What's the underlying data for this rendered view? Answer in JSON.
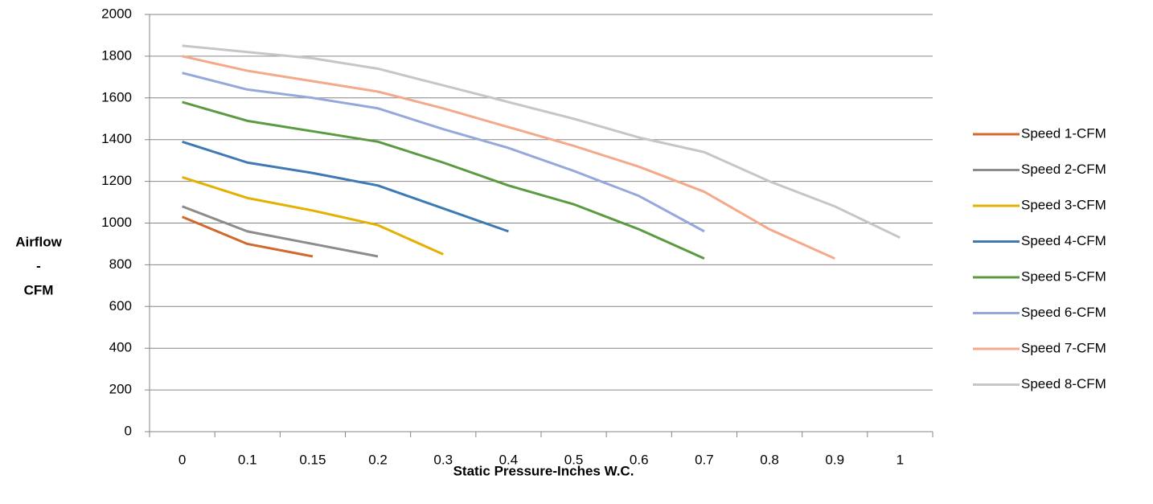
{
  "chart_data": {
    "type": "line",
    "x_label": "Static Pressure-Inches W.C.",
    "y_label": [
      "Airflow",
      "-",
      "CFM"
    ],
    "categories": [
      "0",
      "0.1",
      "0.15",
      "0.2",
      "0.3",
      "0.4",
      "0.5",
      "0.6",
      "0.7",
      "0.8",
      "0.9",
      "1"
    ],
    "ylim": [
      0,
      2000
    ],
    "yticks": [
      0,
      200,
      400,
      600,
      800,
      1000,
      1200,
      1400,
      1600,
      1800,
      2000
    ],
    "grid": true,
    "legend": "right",
    "series": [
      {
        "name": "Speed 1-CFM",
        "color": "#d0692b",
        "values": [
          1030,
          900,
          840,
          null,
          null,
          null,
          null,
          null,
          null,
          null,
          null,
          null
        ]
      },
      {
        "name": "Speed 2-CFM",
        "color": "#8c8c8c",
        "values": [
          1080,
          960,
          900,
          840,
          null,
          null,
          null,
          null,
          null,
          null,
          null,
          null
        ]
      },
      {
        "name": "Speed 3-CFM",
        "color": "#e5b000",
        "values": [
          1220,
          1120,
          1060,
          990,
          850,
          null,
          null,
          null,
          null,
          null,
          null,
          null
        ]
      },
      {
        "name": "Speed 4-CFM",
        "color": "#3d7ab5",
        "values": [
          1390,
          1290,
          1240,
          1180,
          1070,
          960,
          null,
          null,
          null,
          null,
          null,
          null
        ]
      },
      {
        "name": "Speed 5-CFM",
        "color": "#5b9a40",
        "values": [
          1580,
          1490,
          1440,
          1390,
          1290,
          1180,
          1090,
          970,
          830,
          null,
          null,
          null
        ]
      },
      {
        "name": "Speed 6-CFM",
        "color": "#94a8db",
        "values": [
          1720,
          1640,
          1600,
          1550,
          1450,
          1360,
          1250,
          1130,
          960,
          null,
          null,
          null
        ]
      },
      {
        "name": "Speed 7-CFM",
        "color": "#f4a98a",
        "values": [
          1800,
          1730,
          1680,
          1630,
          1550,
          1460,
          1370,
          1270,
          1150,
          970,
          830,
          null
        ]
      },
      {
        "name": "Speed 8-CFM",
        "color": "#c6c6c6",
        "values": [
          1850,
          1820,
          1790,
          1740,
          1660,
          1580,
          1500,
          1410,
          1340,
          1200,
          1080,
          930
        ]
      }
    ]
  }
}
